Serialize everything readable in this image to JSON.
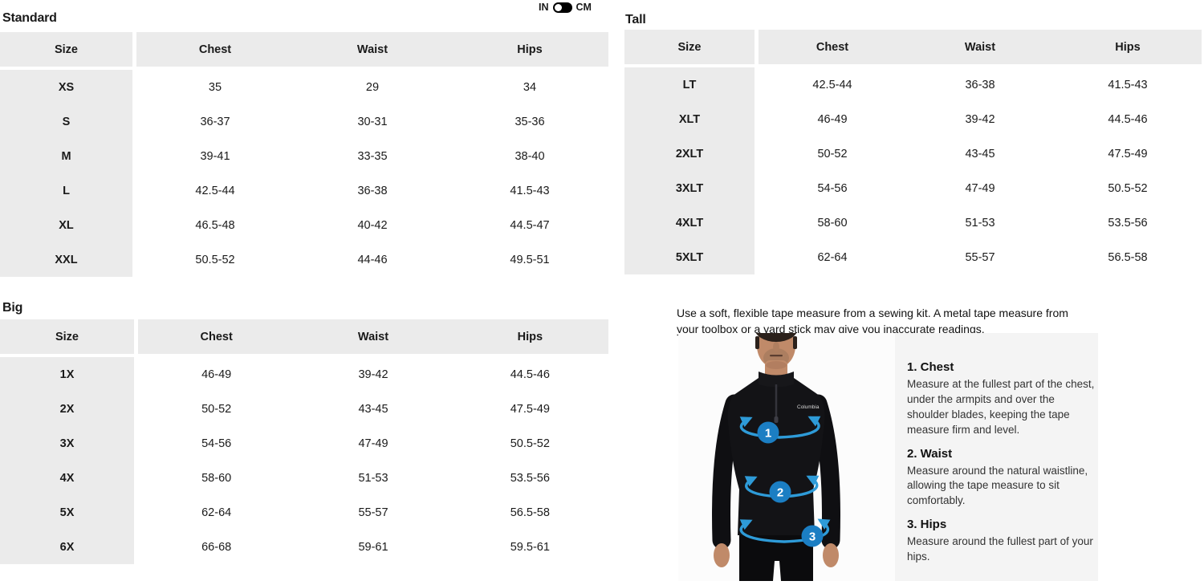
{
  "unit_toggle": {
    "in_label": "IN",
    "cm_label": "CM",
    "selected": "IN"
  },
  "tables": {
    "standard": {
      "title": "Standard",
      "headers": [
        "Size",
        "Chest",
        "Waist",
        "Hips"
      ],
      "rows": [
        {
          "size": "XS",
          "values": [
            "35",
            "29",
            "34"
          ]
        },
        {
          "size": "S",
          "values": [
            "36-37",
            "30-31",
            "35-36"
          ]
        },
        {
          "size": "M",
          "values": [
            "39-41",
            "33-35",
            "38-40"
          ]
        },
        {
          "size": "L",
          "values": [
            "42.5-44",
            "36-38",
            "41.5-43"
          ]
        },
        {
          "size": "XL",
          "values": [
            "46.5-48",
            "40-42",
            "44.5-47"
          ]
        },
        {
          "size": "XXL",
          "values": [
            "50.5-52",
            "44-46",
            "49.5-51"
          ]
        }
      ]
    },
    "tall": {
      "title": "Tall",
      "headers": [
        "Size",
        "Chest",
        "Waist",
        "Hips"
      ],
      "rows": [
        {
          "size": "LT",
          "values": [
            "42.5-44",
            "36-38",
            "41.5-43"
          ]
        },
        {
          "size": "XLT",
          "values": [
            "46-49",
            "39-42",
            "44.5-46"
          ]
        },
        {
          "size": "2XLT",
          "values": [
            "50-52",
            "43-45",
            "47.5-49"
          ]
        },
        {
          "size": "3XLT",
          "values": [
            "54-56",
            "47-49",
            "50.5-52"
          ]
        },
        {
          "size": "4XLT",
          "values": [
            "58-60",
            "51-53",
            "53.5-56"
          ]
        },
        {
          "size": "5XLT",
          "values": [
            "62-64",
            "55-57",
            "56.5-58"
          ]
        }
      ]
    },
    "big": {
      "title": "Big",
      "headers": [
        "Size",
        "Chest",
        "Waist",
        "Hips"
      ],
      "rows": [
        {
          "size": "1X",
          "values": [
            "46-49",
            "39-42",
            "44.5-46"
          ]
        },
        {
          "size": "2X",
          "values": [
            "50-52",
            "43-45",
            "47.5-49"
          ]
        },
        {
          "size": "3X",
          "values": [
            "54-56",
            "47-49",
            "50.5-52"
          ]
        },
        {
          "size": "4X",
          "values": [
            "58-60",
            "51-53",
            "53.5-56"
          ]
        },
        {
          "size": "5X",
          "values": [
            "62-64",
            "55-57",
            "56.5-58"
          ]
        },
        {
          "size": "6X",
          "values": [
            "66-68",
            "59-61",
            "59.5-61"
          ]
        }
      ]
    }
  },
  "measure_guide": {
    "intro": "Use a soft, flexible tape measure from a sewing kit. A metal tape measure from your toolbox or a yard stick may give you inaccurate readings.",
    "steps": [
      {
        "title": "1. Chest",
        "text": "Measure at the fullest part of the chest, under the armpits and over the shoulder blades, keeping the tape measure firm and level."
      },
      {
        "title": "2. Waist",
        "text": "Measure around the natural waistline, allowing the tape measure to sit comfortably."
      },
      {
        "title": "3. Hips",
        "text": "Measure around the fullest part of your hips."
      }
    ],
    "figure": {
      "badges": [
        "1",
        "2",
        "3"
      ],
      "brand": "Columbia"
    }
  },
  "colors": {
    "table_gray": "#ebebeb",
    "panel_gray": "#f4f4f4",
    "badge_blue": "#1b7ec3",
    "arrow_blue": "#2e9bd8"
  }
}
